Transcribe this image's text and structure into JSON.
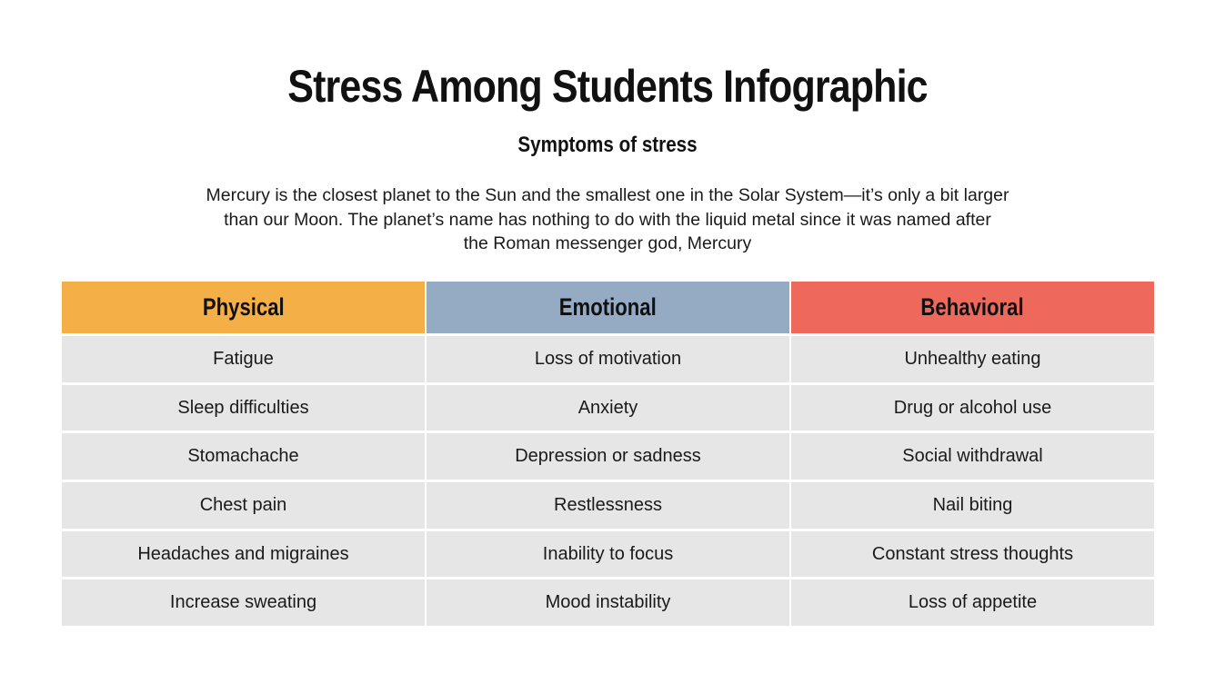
{
  "title": "Stress Among Students Infographic",
  "subtitle": "Symptoms of stress",
  "description_lines": [
    "Mercury is the closest planet to the Sun and the smallest one in the Solar System—it’s only a bit larger",
    "than our Moon. The planet’s name has nothing to do with the liquid metal since it was named after",
    "the Roman messenger god, Mercury"
  ],
  "columns": [
    {
      "header": "Physical",
      "color": "#F5AF47",
      "items": [
        "Fatigue",
        "Sleep difficulties",
        "Stomachache",
        "Chest pain",
        "Headaches and migraines",
        "Increase sweating"
      ]
    },
    {
      "header": "Emotional",
      "color": "#95ABC3",
      "items": [
        "Loss of motivation",
        "Anxiety",
        "Depression or sadness",
        "Restlessness",
        "Inability to focus",
        "Mood instability"
      ]
    },
    {
      "header": "Behavioral",
      "color": "#EE685B",
      "items": [
        "Unhealthy eating",
        "Drug or alcohol use",
        "Social withdrawal",
        "Nail biting",
        "Constant stress thoughts",
        "Loss of appetite"
      ]
    }
  ]
}
